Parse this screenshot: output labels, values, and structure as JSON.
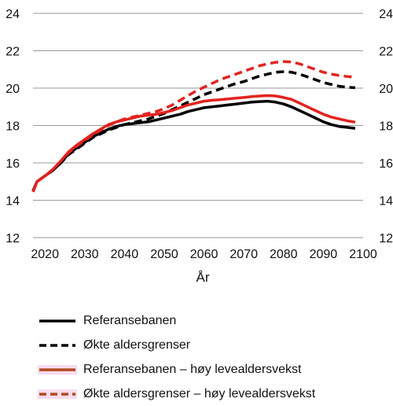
{
  "chart_data": {
    "type": "line",
    "title": "",
    "xlabel": "År",
    "ylabel": "",
    "xlim": [
      2017,
      2100
    ],
    "ylim": [
      12,
      24
    ],
    "x_ticks": [
      2020,
      2030,
      2040,
      2050,
      2060,
      2070,
      2080,
      2090,
      2100
    ],
    "y_ticks": [
      12,
      14,
      16,
      18,
      20,
      22,
      24
    ],
    "y_tick_labels": [
      "12",
      "14",
      "16",
      "18",
      "20",
      "22",
      "24"
    ],
    "x_tick_labels": [
      "2020",
      "2030",
      "2040",
      "2050",
      "2060",
      "2070",
      "2080",
      "2090",
      "2100"
    ],
    "grid": "horizontal",
    "legend_position": "bottom",
    "series": [
      {
        "name": "Referansebanen",
        "color": "#000000",
        "style": "solid",
        "points": [
          [
            2017,
            14.5
          ],
          [
            2018,
            15.0
          ],
          [
            2020,
            15.3
          ],
          [
            2022,
            15.6
          ],
          [
            2024,
            16.0
          ],
          [
            2026,
            16.5
          ],
          [
            2028,
            16.8
          ],
          [
            2030,
            17.1
          ],
          [
            2032,
            17.4
          ],
          [
            2034,
            17.6
          ],
          [
            2036,
            17.8
          ],
          [
            2038,
            17.95
          ],
          [
            2040,
            18.05
          ],
          [
            2042,
            18.1
          ],
          [
            2044,
            18.15
          ],
          [
            2046,
            18.2
          ],
          [
            2048,
            18.3
          ],
          [
            2050,
            18.4
          ],
          [
            2052,
            18.5
          ],
          [
            2054,
            18.6
          ],
          [
            2056,
            18.75
          ],
          [
            2058,
            18.85
          ],
          [
            2060,
            18.95
          ],
          [
            2062,
            19.0
          ],
          [
            2064,
            19.05
          ],
          [
            2066,
            19.1
          ],
          [
            2068,
            19.15
          ],
          [
            2070,
            19.2
          ],
          [
            2072,
            19.25
          ],
          [
            2074,
            19.28
          ],
          [
            2076,
            19.3
          ],
          [
            2078,
            19.25
          ],
          [
            2080,
            19.15
          ],
          [
            2082,
            19.0
          ],
          [
            2084,
            18.8
          ],
          [
            2086,
            18.6
          ],
          [
            2088,
            18.4
          ],
          [
            2090,
            18.2
          ],
          [
            2092,
            18.05
          ],
          [
            2094,
            17.95
          ],
          [
            2096,
            17.9
          ],
          [
            2098,
            17.85
          ]
        ]
      },
      {
        "name": "Økte aldersgrenser",
        "color": "#000000",
        "style": "dashed",
        "points": [
          [
            2017,
            14.5
          ],
          [
            2018,
            15.0
          ],
          [
            2020,
            15.3
          ],
          [
            2022,
            15.6
          ],
          [
            2024,
            16.0
          ],
          [
            2026,
            16.45
          ],
          [
            2028,
            16.75
          ],
          [
            2030,
            17.05
          ],
          [
            2032,
            17.35
          ],
          [
            2034,
            17.55
          ],
          [
            2036,
            17.75
          ],
          [
            2038,
            17.9
          ],
          [
            2040,
            18.05
          ],
          [
            2042,
            18.15
          ],
          [
            2044,
            18.25
          ],
          [
            2046,
            18.35
          ],
          [
            2048,
            18.5
          ],
          [
            2050,
            18.65
          ],
          [
            2052,
            18.85
          ],
          [
            2054,
            19.05
          ],
          [
            2056,
            19.25
          ],
          [
            2058,
            19.45
          ],
          [
            2060,
            19.65
          ],
          [
            2062,
            19.8
          ],
          [
            2064,
            19.95
          ],
          [
            2066,
            20.1
          ],
          [
            2068,
            20.25
          ],
          [
            2070,
            20.35
          ],
          [
            2072,
            20.5
          ],
          [
            2074,
            20.65
          ],
          [
            2076,
            20.75
          ],
          [
            2078,
            20.85
          ],
          [
            2080,
            20.88
          ],
          [
            2082,
            20.85
          ],
          [
            2084,
            20.75
          ],
          [
            2086,
            20.6
          ],
          [
            2088,
            20.45
          ],
          [
            2090,
            20.3
          ],
          [
            2092,
            20.2
          ],
          [
            2094,
            20.1
          ],
          [
            2096,
            20.05
          ],
          [
            2098,
            20.02
          ]
        ]
      },
      {
        "name": "Referansebanen – høy levealdersvekst",
        "color": "#e3231f",
        "style": "solid",
        "points": [
          [
            2017,
            14.45
          ],
          [
            2018,
            15.0
          ],
          [
            2020,
            15.3
          ],
          [
            2022,
            15.65
          ],
          [
            2024,
            16.1
          ],
          [
            2026,
            16.6
          ],
          [
            2028,
            16.95
          ],
          [
            2030,
            17.25
          ],
          [
            2032,
            17.55
          ],
          [
            2034,
            17.8
          ],
          [
            2036,
            18.05
          ],
          [
            2038,
            18.2
          ],
          [
            2040,
            18.3
          ],
          [
            2042,
            18.4
          ],
          [
            2044,
            18.5
          ],
          [
            2046,
            18.55
          ],
          [
            2048,
            18.6
          ],
          [
            2050,
            18.7
          ],
          [
            2052,
            18.8
          ],
          [
            2054,
            18.95
          ],
          [
            2056,
            19.1
          ],
          [
            2058,
            19.2
          ],
          [
            2060,
            19.3
          ],
          [
            2062,
            19.35
          ],
          [
            2064,
            19.38
          ],
          [
            2066,
            19.42
          ],
          [
            2068,
            19.46
          ],
          [
            2070,
            19.5
          ],
          [
            2072,
            19.55
          ],
          [
            2074,
            19.58
          ],
          [
            2076,
            19.6
          ],
          [
            2078,
            19.58
          ],
          [
            2080,
            19.5
          ],
          [
            2082,
            19.4
          ],
          [
            2084,
            19.2
          ],
          [
            2086,
            19.0
          ],
          [
            2088,
            18.8
          ],
          [
            2090,
            18.6
          ],
          [
            2092,
            18.45
          ],
          [
            2094,
            18.35
          ],
          [
            2096,
            18.25
          ],
          [
            2098,
            18.18
          ]
        ]
      },
      {
        "name": "Økte aldersgrenser – høy levealdersvekst",
        "color": "#e3231f",
        "style": "dashed",
        "points": [
          [
            2017,
            14.45
          ],
          [
            2018,
            15.0
          ],
          [
            2020,
            15.3
          ],
          [
            2022,
            15.65
          ],
          [
            2024,
            16.1
          ],
          [
            2026,
            16.55
          ],
          [
            2028,
            16.9
          ],
          [
            2030,
            17.2
          ],
          [
            2032,
            17.5
          ],
          [
            2034,
            17.75
          ],
          [
            2036,
            18.0
          ],
          [
            2038,
            18.2
          ],
          [
            2040,
            18.35
          ],
          [
            2042,
            18.45
          ],
          [
            2044,
            18.55
          ],
          [
            2046,
            18.65
          ],
          [
            2048,
            18.75
          ],
          [
            2050,
            18.9
          ],
          [
            2052,
            19.1
          ],
          [
            2054,
            19.35
          ],
          [
            2056,
            19.6
          ],
          [
            2058,
            19.85
          ],
          [
            2060,
            20.05
          ],
          [
            2062,
            20.25
          ],
          [
            2064,
            20.45
          ],
          [
            2066,
            20.6
          ],
          [
            2068,
            20.75
          ],
          [
            2070,
            20.9
          ],
          [
            2072,
            21.05
          ],
          [
            2074,
            21.2
          ],
          [
            2076,
            21.3
          ],
          [
            2078,
            21.38
          ],
          [
            2080,
            21.42
          ],
          [
            2082,
            21.4
          ],
          [
            2084,
            21.3
          ],
          [
            2086,
            21.15
          ],
          [
            2088,
            21.0
          ],
          [
            2090,
            20.85
          ],
          [
            2092,
            20.75
          ],
          [
            2094,
            20.68
          ],
          [
            2096,
            20.62
          ],
          [
            2098,
            20.58
          ]
        ]
      }
    ]
  }
}
